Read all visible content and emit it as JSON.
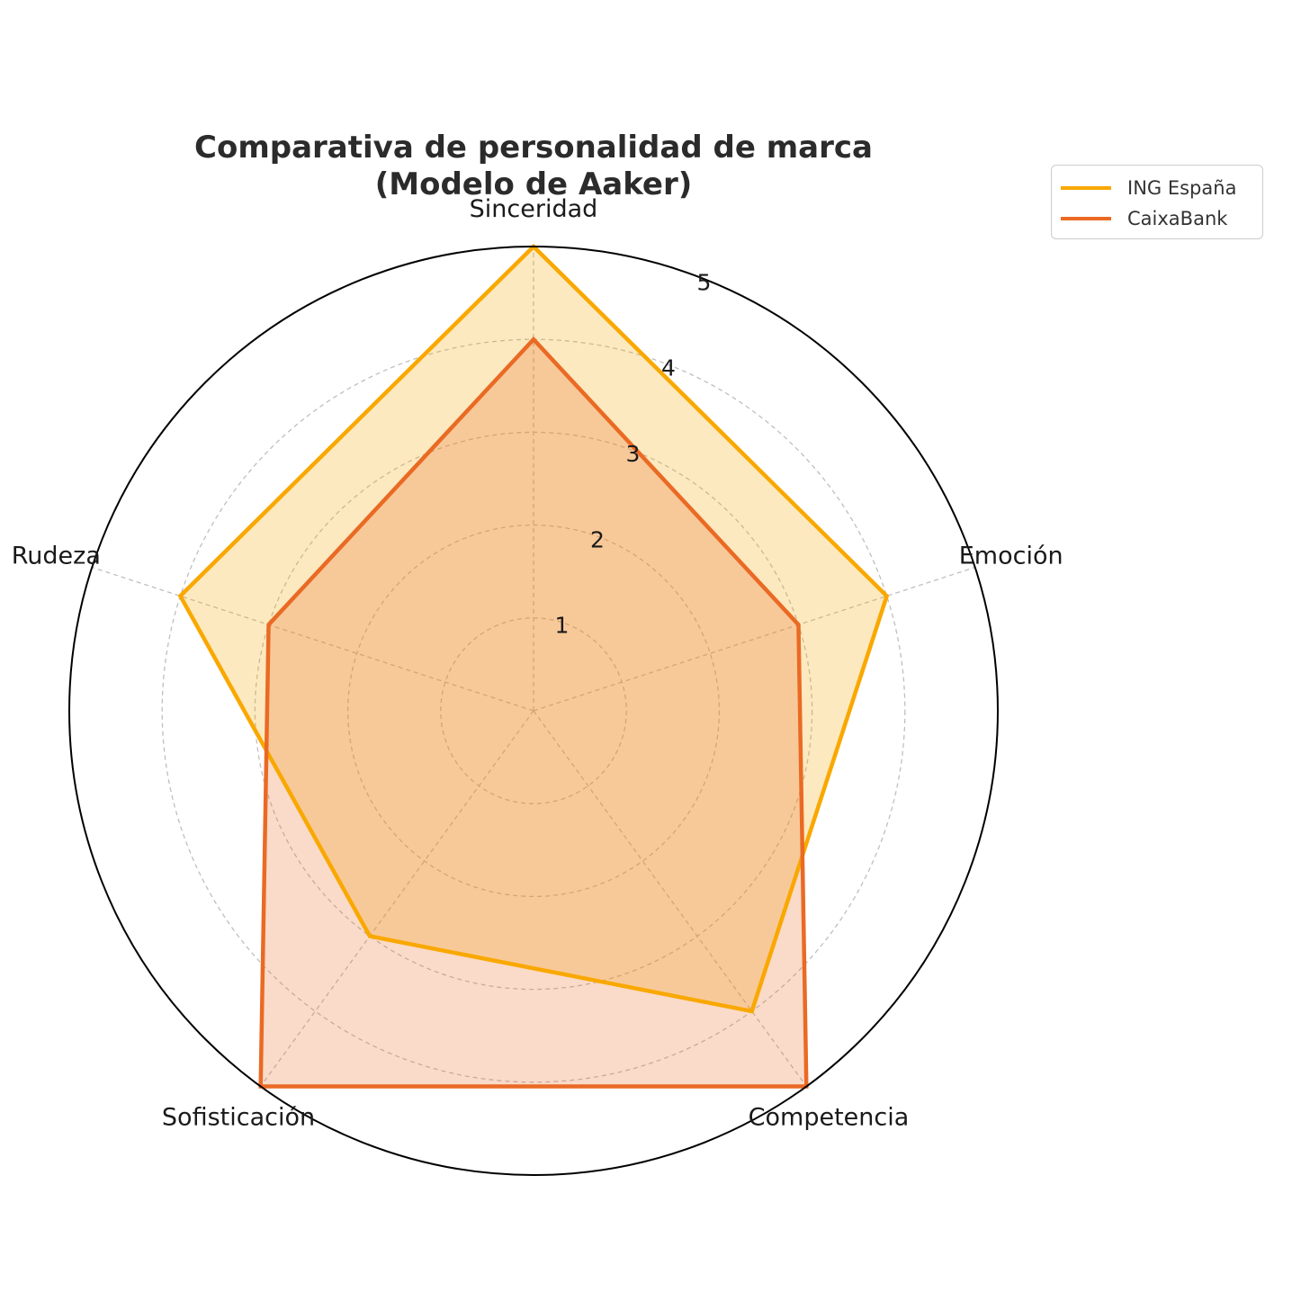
{
  "chart_data": {
    "type": "radar",
    "title": "Comparativa de personalidad de marca\n(Modelo de Aaker)",
    "title_lines": [
      "Comparativa de personalidad de marca",
      "(Modelo de Aaker)"
    ],
    "categories": [
      "Sinceridad",
      "Emoción",
      "Competencia",
      "Sofisticación",
      "Rudeza"
    ],
    "rticks": [
      "1",
      "2",
      "3",
      "4",
      "5"
    ],
    "rlim": [
      0,
      5
    ],
    "grid": true,
    "legend_position": "top-right",
    "series": [
      {
        "name": "ING España",
        "values": [
          5,
          4,
          4,
          3,
          4
        ],
        "color": "#F9A800"
      },
      {
        "name": "CaixaBank",
        "values": [
          4,
          3,
          5,
          5,
          3
        ],
        "color": "#EA6A24"
      }
    ]
  }
}
